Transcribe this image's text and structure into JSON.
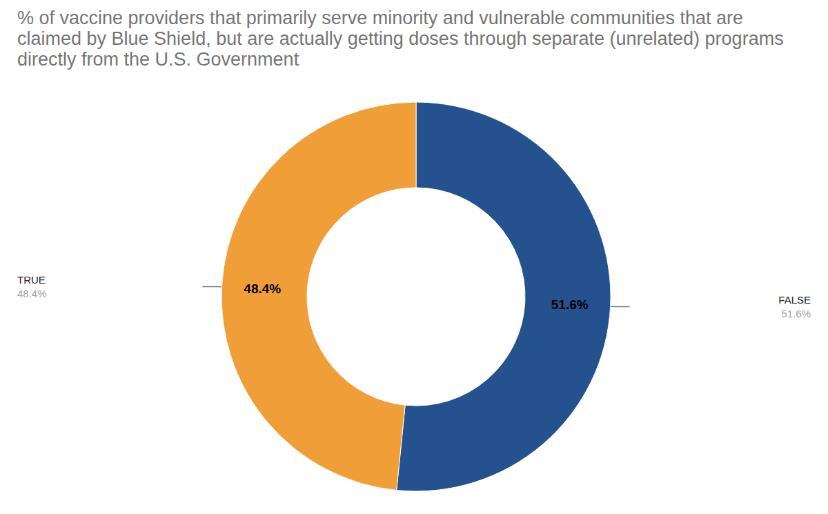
{
  "chart_data": {
    "type": "pie",
    "title": "% of vaccine providers that primarily serve minority and vulnerable communities that are claimed by Blue Shield, but are actually getting doses through separate (unrelated) programs directly from the U.S. Government",
    "categories": [
      "FALSE",
      "TRUE"
    ],
    "values": [
      51.6,
      48.4
    ],
    "value_labels": [
      "51.6%",
      "48.4%"
    ],
    "colors": [
      "#25528f",
      "#f09e38"
    ],
    "data_labels": true
  }
}
